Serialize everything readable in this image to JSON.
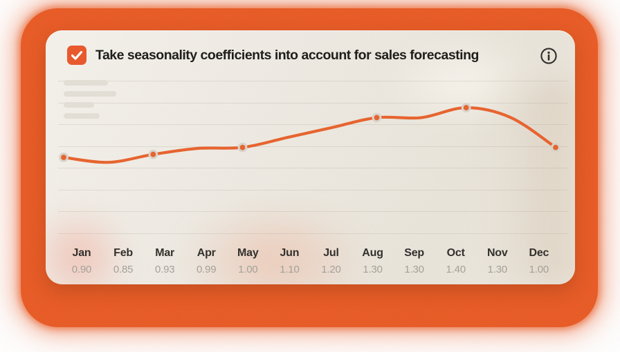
{
  "card": {
    "title": "Take seasonality coefficients into account for sales forecasting",
    "checkbox_checked": true,
    "icons": {
      "checkbox": "checkmark-icon",
      "info": "info-circle-icon"
    }
  },
  "colors": {
    "frame_orange": "#E85A24",
    "chart_line": "#E8622C",
    "checkbox_orange": "#E9572A",
    "card_background": "#F0EDE6",
    "title_text": "#1B1A17",
    "month_label": "#2F2D29",
    "value_label": "#A3A099",
    "marker_ring": "#D8D4CB",
    "skeleton": "#E3DFD6"
  },
  "chart_data": {
    "type": "line",
    "title": "Take seasonality coefficients into account for sales forecasting",
    "categories": [
      "Jan",
      "Feb",
      "Mar",
      "Apr",
      "May",
      "Jun",
      "Jul",
      "Aug",
      "Sep",
      "Oct",
      "Nov",
      "Dec"
    ],
    "values": [
      0.9,
      0.85,
      0.93,
      0.99,
      1.0,
      1.1,
      1.2,
      1.3,
      1.3,
      1.4,
      1.3,
      1.0
    ],
    "value_labels": [
      "0.90",
      "0.85",
      "0.93",
      "0.99",
      "1.00",
      "1.10",
      "1.20",
      "1.30",
      "1.30",
      "1.40",
      "1.30",
      "1.00"
    ],
    "marker_months": [
      "Jan",
      "Mar",
      "May",
      "Aug",
      "Oct",
      "Dec"
    ],
    "xlabel": "",
    "ylabel": "",
    "ylim": [
      0.8,
      1.45
    ],
    "grid": true,
    "legend": "none",
    "line_color": "#E8622C"
  }
}
